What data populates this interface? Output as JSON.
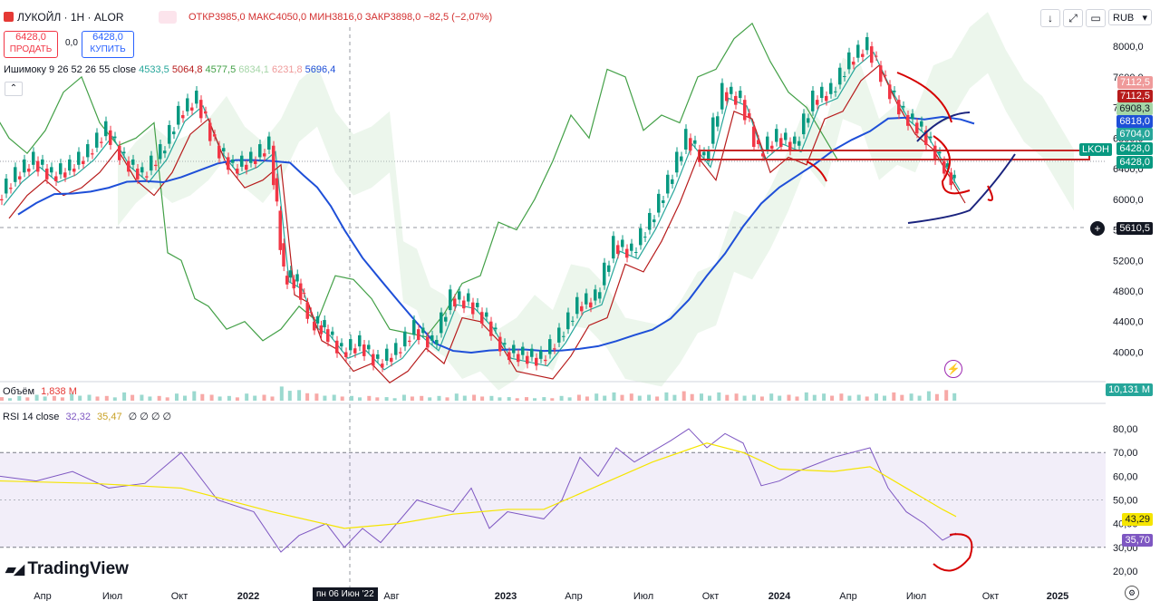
{
  "header": {
    "symbol": "ЛУКОЙЛ · 1Н · ALOR",
    "ohlc": "ОТКР3985,0 МАКС4050,0 МИН3816,0 ЗАКР3898,0 −82,5 (−2,07%)",
    "sell_price": "6428,0",
    "sell_label": "ПРОДАТЬ",
    "spread": "0,0",
    "buy_price": "6428,0",
    "buy_label": "КУПИТЬ",
    "currency": "RUB"
  },
  "indicators": {
    "ichimoku_name": "Ишимоку 9 26 52 26 55 close",
    "ichimoku_values": [
      "4533,5",
      "5064,8",
      "4577,5",
      "6834,1",
      "6231,8",
      "5696,4"
    ],
    "ichimoku_colors": [
      "#26a69a",
      "#b71c1c",
      "#43a047",
      "#a5d6a7",
      "#ef9a9a",
      "#1e4fd8"
    ],
    "volume_name": "Объём",
    "volume_value": "1,838 M",
    "rsi_name": "RSI 14 close",
    "rsi_value": "32,32",
    "rsi_ma_value": "35,47",
    "rsi_extra": "∅ ∅ ∅ ∅"
  },
  "price_tags": [
    {
      "text": "7112,5",
      "color": "#ef9a9a"
    },
    {
      "text": "7112,5",
      "color": "#b71c1c"
    },
    {
      "text": "6908,3",
      "color": "#a5d6a7"
    },
    {
      "text": "6818,0",
      "color": "#1e4fd8"
    },
    {
      "text": "6704,0",
      "color": "#26a69a"
    },
    {
      "text": "6428,0",
      "color": "#089981"
    },
    {
      "text": "6428,0",
      "color": "#089981"
    }
  ],
  "side_tags": {
    "ticker": "LKOH",
    "crosshair_price": "5610,5",
    "volume_tag": "10,131 M",
    "rsi_ma_tag": "43,29",
    "rsi_tag": "35,70",
    "time_tag": "пн 06 Июн '22"
  },
  "brand": "TradingView",
  "chart_data": {
    "type": "candlestick",
    "price_axis_ticks": [
      "8000,0",
      "7600,0",
      "7200,0",
      "6800,0",
      "6400,0",
      "6000,0",
      "5600,0",
      "5200,0",
      "4800,0",
      "4400,0",
      "4000,0"
    ],
    "ylim": [
      3650,
      8250
    ],
    "rsi_axis_ticks": [
      "80,00",
      "70,00",
      "60,00",
      "50,00",
      "40,00",
      "30,00",
      "20,00"
    ],
    "rsi_levels": [
      70,
      30
    ],
    "time_axis_ticks": [
      "Апр",
      "Июл",
      "Окт",
      "2022",
      "Авг",
      "2023",
      "Апр",
      "Июл",
      "Окт",
      "2024",
      "Апр",
      "Июл",
      "Окт",
      "2025"
    ],
    "price_series_approx": [
      [
        0,
        6000
      ],
      [
        20,
        6300
      ],
      [
        40,
        6500
      ],
      [
        60,
        6300
      ],
      [
        80,
        6400
      ],
      [
        100,
        6600
      ],
      [
        120,
        6900
      ],
      [
        140,
        6500
      ],
      [
        160,
        6300
      ],
      [
        180,
        6600
      ],
      [
        200,
        7100
      ],
      [
        220,
        7300
      ],
      [
        240,
        6700
      ],
      [
        260,
        6400
      ],
      [
        280,
        6500
      ],
      [
        300,
        6700
      ],
      [
        315,
        5000
      ],
      [
        330,
        4900
      ],
      [
        345,
        4400
      ],
      [
        360,
        4300
      ],
      [
        380,
        4000
      ],
      [
        400,
        4100
      ],
      [
        420,
        3850
      ],
      [
        440,
        4000
      ],
      [
        460,
        4300
      ],
      [
        480,
        4100
      ],
      [
        500,
        4700
      ],
      [
        520,
        4650
      ],
      [
        540,
        4400
      ],
      [
        560,
        4000
      ],
      [
        580,
        3950
      ],
      [
        600,
        3900
      ],
      [
        620,
        4200
      ],
      [
        640,
        4600
      ],
      [
        660,
        4700
      ],
      [
        680,
        5400
      ],
      [
        700,
        5300
      ],
      [
        720,
        5700
      ],
      [
        740,
        6200
      ],
      [
        760,
        6800
      ],
      [
        780,
        6500
      ],
      [
        800,
        7400
      ],
      [
        820,
        7300
      ],
      [
        840,
        6600
      ],
      [
        860,
        6800
      ],
      [
        880,
        6700
      ],
      [
        900,
        7300
      ],
      [
        920,
        7400
      ],
      [
        940,
        7800
      ],
      [
        960,
        8000
      ],
      [
        980,
        7500
      ],
      [
        1000,
        7100
      ],
      [
        1020,
        6900
      ],
      [
        1040,
        6500
      ],
      [
        1055,
        6200
      ]
    ],
    "volume_series_approx": [
      3,
      4,
      5,
      4,
      6,
      5,
      4,
      7,
      5,
      4,
      6,
      8,
      5,
      4,
      6,
      5,
      12,
      9,
      6,
      5,
      4,
      4,
      3,
      5,
      4,
      4,
      6,
      5,
      4,
      3,
      3,
      3,
      4,
      5,
      6,
      7,
      6,
      5,
      7,
      8,
      6,
      7,
      6,
      5,
      6,
      5,
      7,
      6,
      6,
      5,
      6,
      7,
      6,
      8,
      9
    ],
    "rsi_series_approx": [
      [
        0,
        60
      ],
      [
        40,
        58
      ],
      [
        80,
        62
      ],
      [
        120,
        55
      ],
      [
        160,
        57
      ],
      [
        200,
        70
      ],
      [
        240,
        50
      ],
      [
        280,
        45
      ],
      [
        310,
        28
      ],
      [
        330,
        35
      ],
      [
        360,
        40
      ],
      [
        380,
        30
      ],
      [
        400,
        38
      ],
      [
        420,
        32
      ],
      [
        460,
        50
      ],
      [
        500,
        45
      ],
      [
        520,
        55
      ],
      [
        540,
        38
      ],
      [
        560,
        45
      ],
      [
        600,
        42
      ],
      [
        620,
        50
      ],
      [
        640,
        68
      ],
      [
        660,
        60
      ],
      [
        680,
        72
      ],
      [
        700,
        66
      ],
      [
        740,
        75
      ],
      [
        760,
        80
      ],
      [
        780,
        72
      ],
      [
        800,
        78
      ],
      [
        820,
        74
      ],
      [
        840,
        56
      ],
      [
        860,
        58
      ],
      [
        880,
        62
      ],
      [
        920,
        68
      ],
      [
        960,
        72
      ],
      [
        980,
        55
      ],
      [
        1000,
        45
      ],
      [
        1020,
        40
      ],
      [
        1040,
        33
      ],
      [
        1055,
        36
      ]
    ],
    "rsi_ma_series_approx": [
      [
        0,
        58
      ],
      [
        100,
        57
      ],
      [
        200,
        55
      ],
      [
        300,
        45
      ],
      [
        380,
        38
      ],
      [
        440,
        40
      ],
      [
        500,
        44
      ],
      [
        560,
        46
      ],
      [
        600,
        46
      ],
      [
        660,
        56
      ],
      [
        720,
        66
      ],
      [
        780,
        74
      ],
      [
        820,
        70
      ],
      [
        860,
        63
      ],
      [
        920,
        62
      ],
      [
        960,
        64
      ],
      [
        1000,
        55
      ],
      [
        1040,
        46
      ],
      [
        1055,
        43
      ]
    ]
  }
}
